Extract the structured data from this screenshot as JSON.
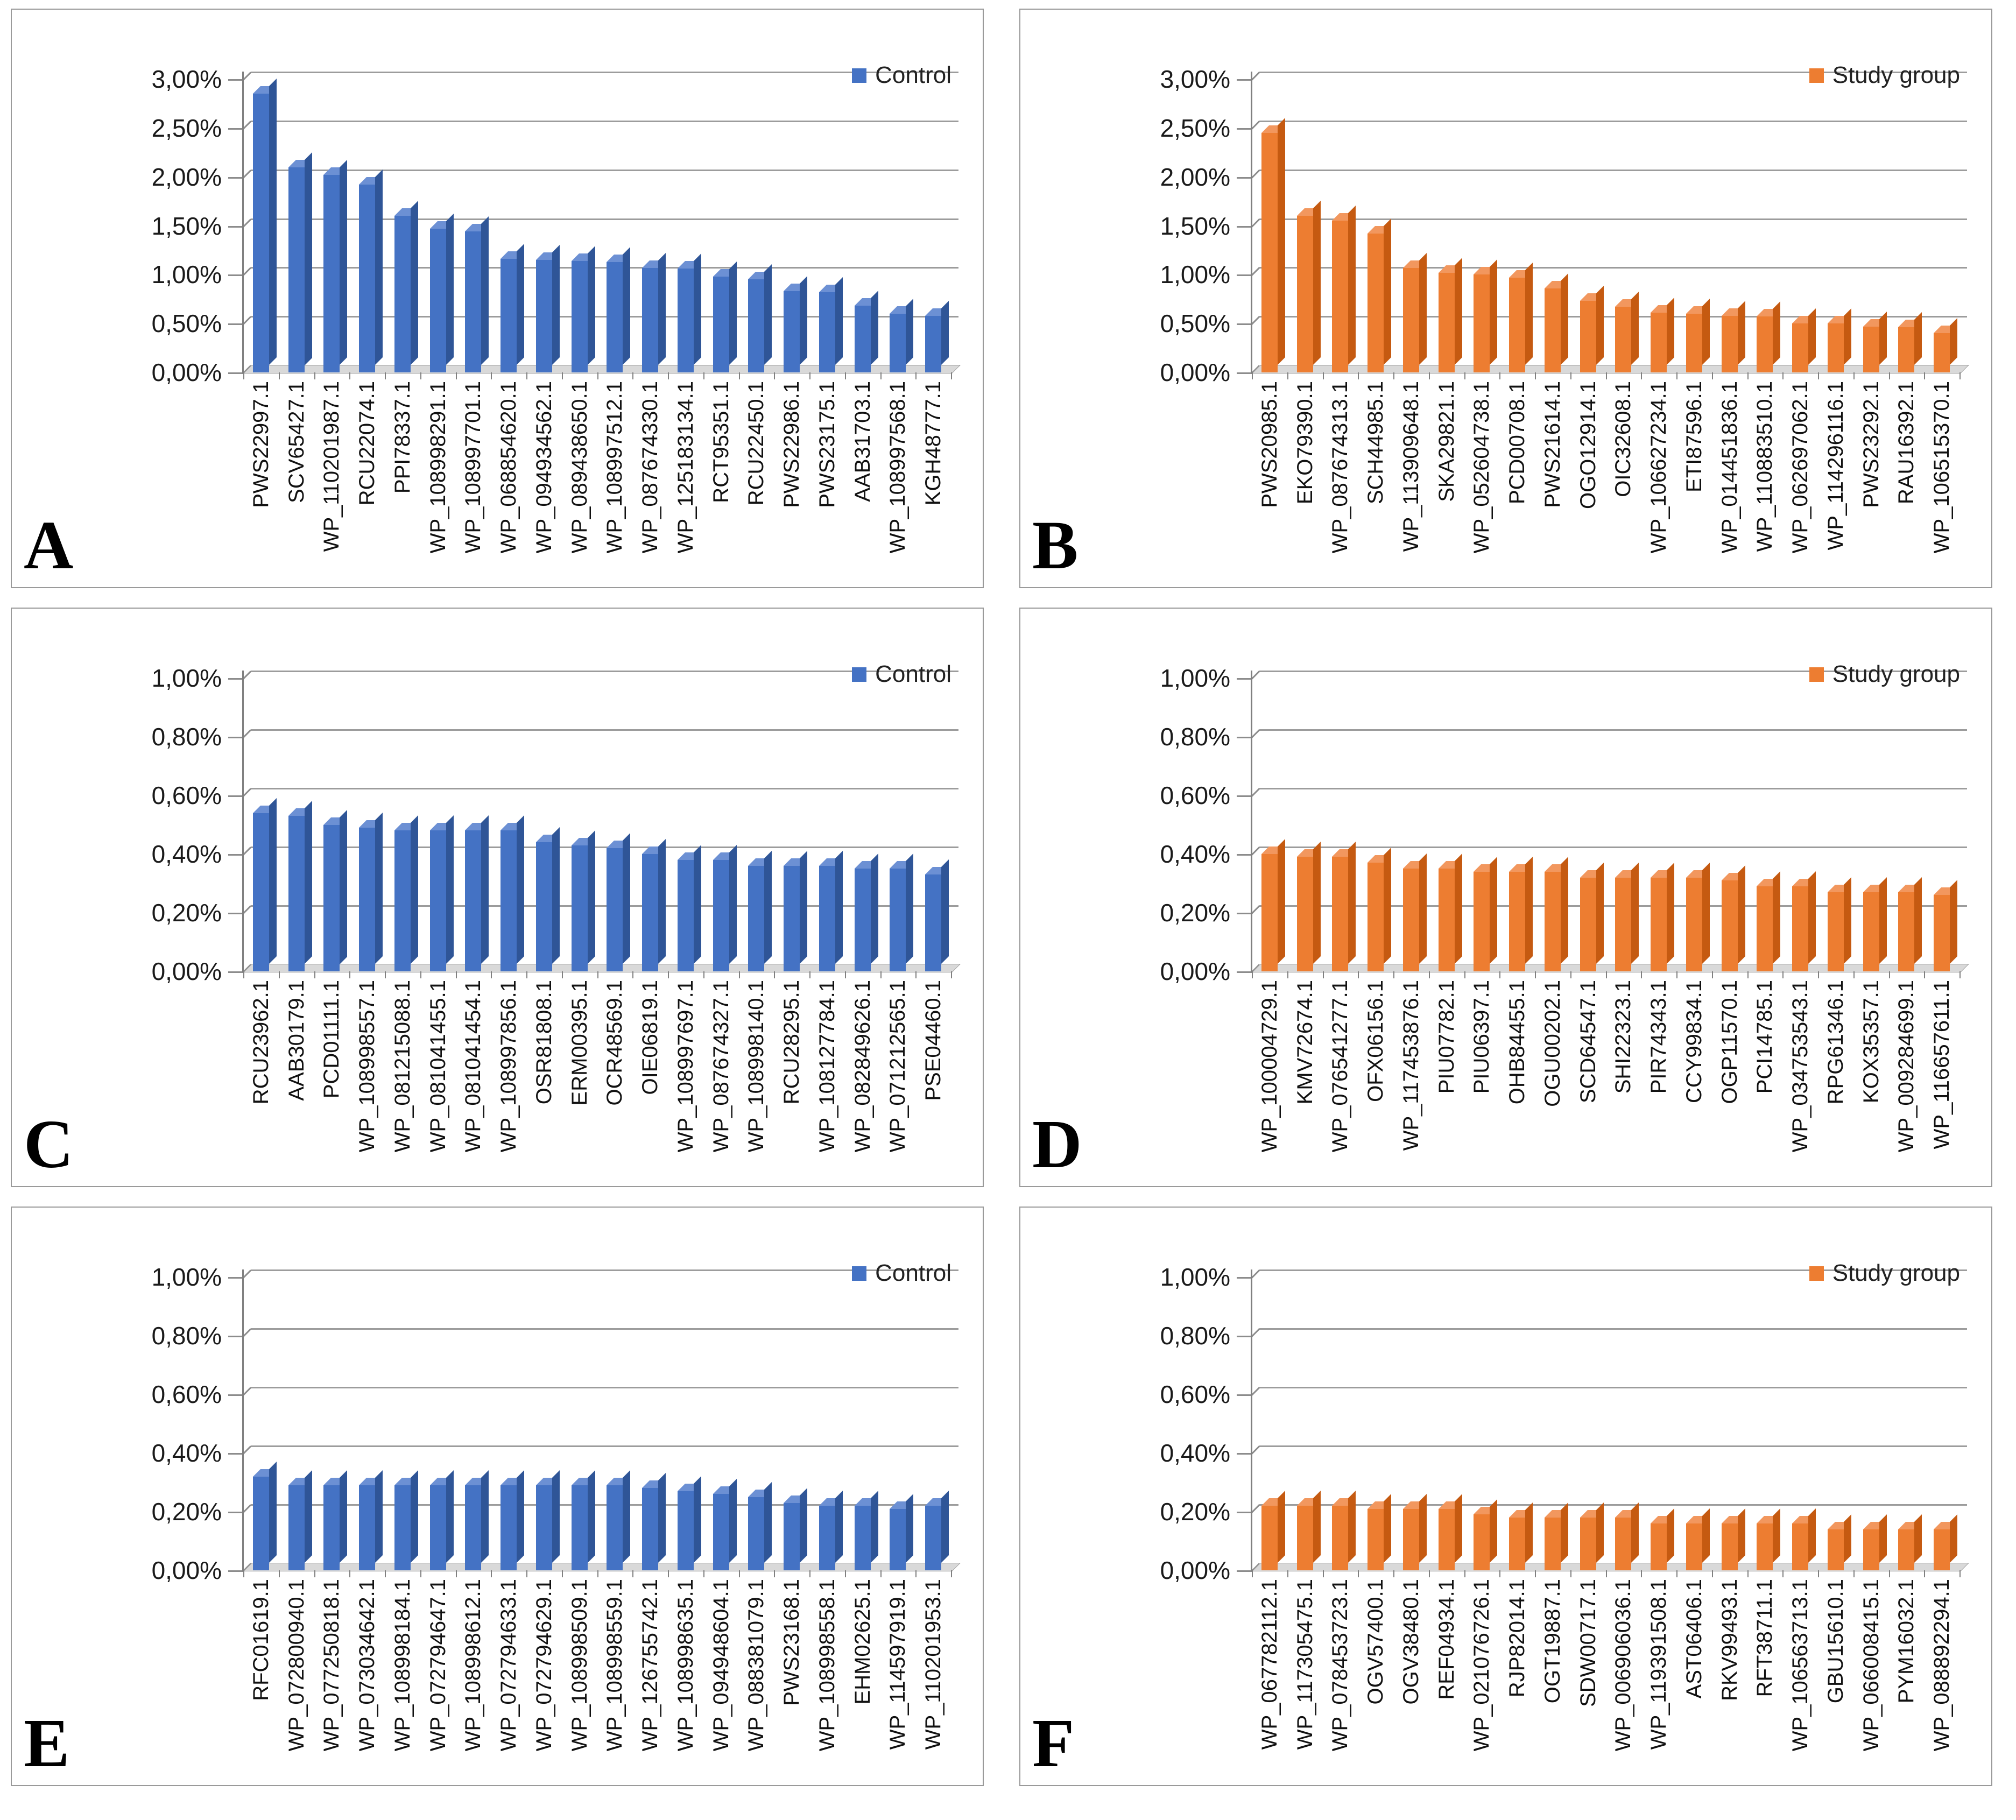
{
  "figure_title": "",
  "chart_data": [
    {
      "type": "bar",
      "panel_label": "A",
      "legend": "Control",
      "legend_position": "top-right",
      "bar_color": "#4472C4",
      "bar_color_top": "#6C90D4",
      "bar_color_side": "#2F5597",
      "ylim": [
        0,
        3.0
      ],
      "ytick_values": [
        3.0,
        2.5,
        2.0,
        1.5,
        1.0,
        0.5,
        0.0
      ],
      "ytick_labels": [
        "3,00%",
        "2,50%",
        "2,00%",
        "1,50%",
        "1,00%",
        "0,50%",
        "0,00%"
      ],
      "grid": true,
      "xlabel": "",
      "ylabel": "",
      "categories": [
        "PWS22997.1",
        "SCV65427.1",
        "WP_110201987.1",
        "RCU22074.1",
        "PPI78337.1",
        "WP_108998291.1",
        "WP_108997701.1",
        "WP_068854620.1",
        "WP_094934562.1",
        "WP_089438650.1",
        "WP_108997512.1",
        "WP_087674330.1",
        "WP_125183134.1",
        "RCT95351.1",
        "RCU22450.1",
        "PWS22986.1",
        "PWS23175.1",
        "AAB31703.1",
        "WP_108997568.1",
        "KGH48777.1"
      ],
      "values": [
        2.85,
        2.1,
        2.02,
        1.92,
        1.6,
        1.47,
        1.44,
        1.16,
        1.15,
        1.14,
        1.13,
        1.07,
        1.06,
        0.98,
        0.95,
        0.83,
        0.82,
        0.68,
        0.6,
        0.58
      ]
    },
    {
      "type": "bar",
      "panel_label": "B",
      "legend": "Study group",
      "legend_position": "top-right",
      "bar_color": "#ED7D31",
      "bar_color_top": "#F2975E",
      "bar_color_side": "#C55A11",
      "ylim": [
        0,
        3.0
      ],
      "ytick_values": [
        3.0,
        2.5,
        2.0,
        1.5,
        1.0,
        0.5,
        0.0
      ],
      "ytick_labels": [
        "3,00%",
        "2,50%",
        "2,00%",
        "1,50%",
        "1,00%",
        "0,50%",
        "0,00%"
      ],
      "grid": true,
      "xlabel": "",
      "ylabel": "",
      "categories": [
        "PWS20985.1",
        "EKO79390.1",
        "WP_087674313.1",
        "SCH44985.1",
        "WP_113909648.1",
        "SKA29821.1",
        "WP_052604738.1",
        "PCD00708.1",
        "PWS21614.1",
        "OGO12914.1",
        "OIC32608.1",
        "WP_106627234.1",
        "ETI87596.1",
        "WP_014451836.1",
        "WP_110883510.1",
        "WP_062697062.1",
        "WP_114296116.1",
        "PWS23292.1",
        "RAU16392.1",
        "WP_106515370.1"
      ],
      "values": [
        2.45,
        1.6,
        1.55,
        1.42,
        1.07,
        1.02,
        1.0,
        0.97,
        0.86,
        0.73,
        0.67,
        0.61,
        0.6,
        0.58,
        0.57,
        0.5,
        0.5,
        0.47,
        0.46,
        0.4
      ]
    },
    {
      "type": "bar",
      "panel_label": "C",
      "legend": "Control",
      "legend_position": "top-right",
      "bar_color": "#4472C4",
      "bar_color_top": "#6C90D4",
      "bar_color_side": "#2F5597",
      "ylim": [
        0,
        1.0
      ],
      "ytick_values": [
        1.0,
        0.8,
        0.6,
        0.4,
        0.2,
        0.0
      ],
      "ytick_labels": [
        "1,00%",
        "0,80%",
        "0,60%",
        "0,40%",
        "0,20%",
        "0,00%"
      ],
      "grid": true,
      "xlabel": "",
      "ylabel": "",
      "categories": [
        "RCU23962.1",
        "AAB30179.1",
        "PCD01111.1",
        "WP_108998557.1",
        "WP_081215088.1",
        "WP_081041455.1",
        "WP_081041454.1",
        "WP_108997856.1",
        "OSR81808.1",
        "ERM00395.1",
        "OCR48569.1",
        "OIE06819.1",
        "WP_108997697.1",
        "WP_087674327.1",
        "WP_108998140.1",
        "RCU28295.1",
        "WP_108127784.1",
        "WP_082849626.1",
        "WP_071212565.1",
        "PSE04460.1"
      ],
      "values": [
        0.54,
        0.53,
        0.5,
        0.49,
        0.48,
        0.48,
        0.48,
        0.48,
        0.44,
        0.43,
        0.42,
        0.4,
        0.38,
        0.38,
        0.36,
        0.36,
        0.36,
        0.35,
        0.35,
        0.33
      ]
    },
    {
      "type": "bar",
      "panel_label": "D",
      "legend": "Study group",
      "legend_position": "top-right",
      "bar_color": "#ED7D31",
      "bar_color_top": "#F2975E",
      "bar_color_side": "#C55A11",
      "ylim": [
        0,
        1.0
      ],
      "ytick_values": [
        1.0,
        0.8,
        0.6,
        0.4,
        0.2,
        0.0
      ],
      "ytick_labels": [
        "1,00%",
        "0,80%",
        "0,60%",
        "0,40%",
        "0,20%",
        "0,00%"
      ],
      "grid": true,
      "xlabel": "",
      "ylabel": "",
      "categories": [
        "WP_100004729.1",
        "KMV72674.1",
        "WP_076541277.1",
        "OFX06156.1",
        "WP_117453876.1",
        "PIU07782.1",
        "PIU06397.1",
        "OHB84455.1",
        "OGU00202.1",
        "SCD64547.1",
        "SHI22323.1",
        "PIR74343.1",
        "CCY99834.1",
        "OGP11570.1",
        "PCI14785.1",
        "WP_034753543.1",
        "RPG61346.1",
        "KOX35357.1",
        "WP_009284699.1",
        "WP_116657611.1"
      ],
      "values": [
        0.4,
        0.39,
        0.39,
        0.37,
        0.35,
        0.35,
        0.34,
        0.34,
        0.34,
        0.32,
        0.32,
        0.32,
        0.32,
        0.31,
        0.29,
        0.29,
        0.27,
        0.27,
        0.27,
        0.26
      ]
    },
    {
      "type": "bar",
      "panel_label": "E",
      "legend": "Control",
      "legend_position": "top-right",
      "bar_color": "#4472C4",
      "bar_color_top": "#6C90D4",
      "bar_color_side": "#2F5597",
      "ylim": [
        0,
        1.0
      ],
      "ytick_values": [
        1.0,
        0.8,
        0.6,
        0.4,
        0.2,
        0.0
      ],
      "ytick_labels": [
        "1,00%",
        "0,80%",
        "0,60%",
        "0,40%",
        "0,20%",
        "0,00%"
      ],
      "grid": true,
      "xlabel": "",
      "ylabel": "",
      "categories": [
        "RFC01619.1",
        "WP_072800940.1",
        "WP_077250818.1",
        "WP_073034642.1",
        "WP_108998184.1",
        "WP_072794647.1",
        "WP_108998612.1",
        "WP_072794633.1",
        "WP_072794629.1",
        "WP_108998509.1",
        "WP_108998559.1",
        "WP_126755742.1",
        "WP_108998635.1",
        "WP_094948604.1",
        "WP_088381079.1",
        "PWS23168.1",
        "WP_108998558.1",
        "EHM02625.1",
        "WP_114597919.1",
        "WP_110201953.1"
      ],
      "values": [
        0.32,
        0.29,
        0.29,
        0.29,
        0.29,
        0.29,
        0.29,
        0.29,
        0.29,
        0.29,
        0.29,
        0.28,
        0.27,
        0.26,
        0.25,
        0.23,
        0.22,
        0.22,
        0.21,
        0.22
      ]
    },
    {
      "type": "bar",
      "panel_label": "F",
      "legend": "Study group",
      "legend_position": "top-right",
      "bar_color": "#ED7D31",
      "bar_color_top": "#F2975E",
      "bar_color_side": "#C55A11",
      "ylim": [
        0,
        1.0
      ],
      "ytick_values": [
        1.0,
        0.8,
        0.6,
        0.4,
        0.2,
        0.0
      ],
      "ytick_labels": [
        "1,00%",
        "0,80%",
        "0,60%",
        "0,40%",
        "0,20%",
        "0,00%"
      ],
      "grid": true,
      "xlabel": "",
      "ylabel": "",
      "categories": [
        "WP_067782112.1",
        "WP_117305475.1",
        "WP_078453723.1",
        "OGV57400.1",
        "OGV38480.1",
        "REF04934.1",
        "WP_021076726.1",
        "RJP82014.1",
        "OGT19887.1",
        "SDW00717.1",
        "WP_006906036.1",
        "WP_119391508.1",
        "AST06406.1",
        "RKV99493.1",
        "RFT38711.1",
        "WP_106563713.1",
        "GBU15610.1",
        "WP_066008415.1",
        "PYM16032.1",
        "WP_088892294.1"
      ],
      "values": [
        0.22,
        0.22,
        0.22,
        0.21,
        0.21,
        0.21,
        0.19,
        0.18,
        0.18,
        0.18,
        0.18,
        0.16,
        0.16,
        0.16,
        0.16,
        0.16,
        0.14,
        0.14,
        0.14,
        0.14
      ]
    }
  ]
}
